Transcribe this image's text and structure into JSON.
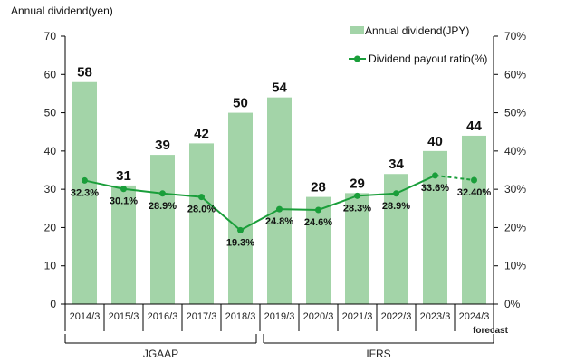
{
  "chart_data": {
    "type": "bar",
    "y_unit_label": "Annual dividend(yen)",
    "categories": [
      "2014/3",
      "2015/3",
      "2016/3",
      "2017/3",
      "2018/3",
      "2019/3",
      "2020/3",
      "2021/3",
      "2022/3",
      "2023/3",
      "2024/3"
    ],
    "series": [
      {
        "name": "Annual dividend(JPY)",
        "type": "bar",
        "axis": "left",
        "color": "#a3d4a8",
        "values": [
          58,
          31,
          39,
          42,
          50,
          54,
          28,
          29,
          34,
          40,
          44
        ],
        "labels": [
          "58",
          "31",
          "39",
          "42",
          "50",
          "54",
          "28",
          "29",
          "34",
          "40",
          "44"
        ]
      },
      {
        "name": "Dividend payout ratio(%)",
        "type": "line",
        "axis": "right",
        "color": "#1a9e3a",
        "values": [
          32.3,
          30.1,
          28.9,
          28.0,
          19.3,
          24.8,
          24.6,
          28.3,
          28.9,
          33.6,
          32.4
        ],
        "labels": [
          "32.3%",
          "30.1%",
          "28.9%",
          "28.0%",
          "19.3%",
          "24.8%",
          "24.6%",
          "28.3%",
          "28.9%",
          "33.6%",
          "32.40%"
        ],
        "dashed_last_segment": true
      }
    ],
    "left_axis": {
      "min": 0,
      "max": 70,
      "ticks": [
        "0",
        "10",
        "20",
        "30",
        "40",
        "50",
        "60",
        "70"
      ]
    },
    "right_axis": {
      "min": 0,
      "max": 70,
      "ticks": [
        "0%",
        "10%",
        "20%",
        "30%",
        "40%",
        "50%",
        "60%",
        "70%"
      ]
    },
    "forecast_note": "forecast",
    "groups": [
      {
        "name": "JGAAP",
        "from": "2014/3",
        "to": "2018/3"
      },
      {
        "name": "IFRS",
        "from": "2019/3",
        "to": "2024/3"
      }
    ],
    "legend_position": "top-right"
  }
}
